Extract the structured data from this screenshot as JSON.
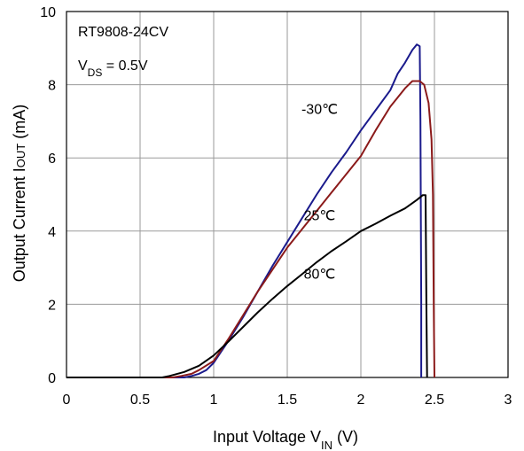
{
  "chart_data": {
    "type": "line",
    "title": "",
    "annotation_box": {
      "device": "RT9808-24CV",
      "vds_main": "V",
      "vds_sub": "DS",
      "vds_rest": " = 0.5V"
    },
    "xlabel": {
      "main": "Input Voltage V",
      "sub": "IN",
      "unit": " (V)"
    },
    "ylabel": {
      "main": "Output Current I",
      "sub": "OUT",
      "unit": " (mA)"
    },
    "xlim": [
      0,
      3
    ],
    "ylim": [
      0,
      10
    ],
    "xticks": [
      0,
      0.5,
      1,
      1.5,
      2,
      2.5,
      3
    ],
    "xtick_labels": [
      "0",
      "0.5",
      "1",
      "1.5",
      "2",
      "2.5",
      "3"
    ],
    "yticks": [
      0,
      2,
      4,
      6,
      8,
      10
    ],
    "ytick_labels": [
      "0",
      "2",
      "4",
      "6",
      "8",
      "10"
    ],
    "grid": true,
    "series": [
      {
        "name": "-30℃",
        "color": "#1a1a8c",
        "x": [
          0,
          0.8,
          0.85,
          0.9,
          0.95,
          1.0,
          1.1,
          1.2,
          1.3,
          1.4,
          1.5,
          1.6,
          1.7,
          1.8,
          1.9,
          2.0,
          2.1,
          2.2,
          2.25,
          2.3,
          2.35,
          2.38,
          2.4,
          2.405,
          2.41,
          2.41
        ],
        "y": [
          0,
          0,
          0.04,
          0.1,
          0.2,
          0.4,
          1.0,
          1.65,
          2.35,
          3.05,
          3.7,
          4.35,
          5.0,
          5.6,
          6.15,
          6.75,
          7.3,
          7.85,
          8.3,
          8.6,
          8.95,
          9.1,
          9.05,
          7.0,
          2.0,
          0
        ]
      },
      {
        "name": "25℃",
        "color": "#8b1a1a",
        "x": [
          0,
          0.72,
          0.78,
          0.85,
          0.9,
          1.0,
          1.1,
          1.2,
          1.3,
          1.4,
          1.5,
          1.6,
          1.7,
          1.8,
          1.9,
          2.0,
          2.1,
          2.2,
          2.3,
          2.35,
          2.4,
          2.43,
          2.46,
          2.48,
          2.49,
          2.495,
          2.5
        ],
        "y": [
          0,
          0,
          0.04,
          0.1,
          0.2,
          0.45,
          1.05,
          1.7,
          2.35,
          2.95,
          3.55,
          4.05,
          4.55,
          5.05,
          5.55,
          6.05,
          6.75,
          7.4,
          7.9,
          8.1,
          8.1,
          8.0,
          7.5,
          6.5,
          5.0,
          2.0,
          0
        ]
      },
      {
        "name": "80℃",
        "color": "#000000",
        "x": [
          0,
          0.65,
          0.7,
          0.8,
          0.9,
          1.0,
          1.1,
          1.2,
          1.3,
          1.4,
          1.5,
          1.6,
          1.7,
          1.8,
          1.9,
          2.0,
          2.1,
          2.2,
          2.3,
          2.38,
          2.42,
          2.44,
          2.445,
          2.45
        ],
        "y": [
          0,
          0,
          0.04,
          0.15,
          0.32,
          0.6,
          0.98,
          1.38,
          1.78,
          2.15,
          2.5,
          2.82,
          3.15,
          3.45,
          3.72,
          4.0,
          4.2,
          4.42,
          4.62,
          4.85,
          4.98,
          4.98,
          2.0,
          0
        ]
      }
    ],
    "series_labels": [
      {
        "text": "-30℃",
        "x": 1.72,
        "y": 7.2
      },
      {
        "text": "25℃",
        "x": 1.72,
        "y": 4.3
      },
      {
        "text": "80℃",
        "x": 1.72,
        "y": 2.7
      }
    ]
  }
}
